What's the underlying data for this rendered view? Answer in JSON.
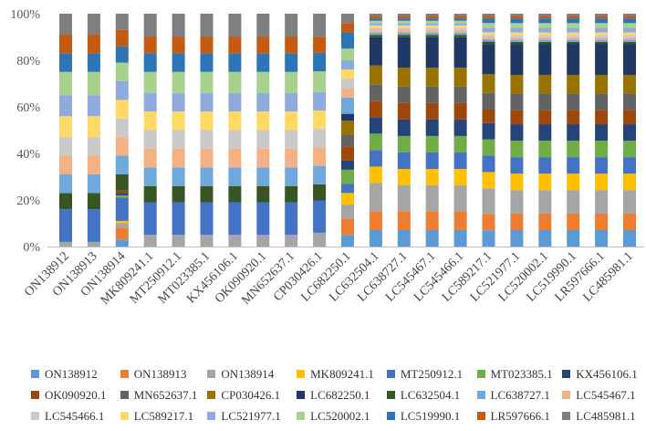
{
  "chart_data": {
    "type": "bar",
    "stacked": true,
    "normalized": true,
    "title": "",
    "xlabel": "",
    "ylabel": "",
    "ylim": [
      0,
      100
    ],
    "y_ticks": [
      "0%",
      "20%",
      "40%",
      "60%",
      "80%",
      "100%"
    ],
    "grid": false,
    "legend_position": "bottom",
    "categories": [
      "ON138912",
      "ON138913",
      "ON138914",
      "MK809241.1",
      "MT250912.1",
      "MT023385.1",
      "KX456106.1",
      "OK090920.1",
      "MN652637.1",
      "CP030426.1",
      "LC682250.1",
      "LC632504.1",
      "LC638727.1",
      "LC545467.1",
      "LC545466.1",
      "LC589217.1",
      "LC521977.1",
      "LC520002.1",
      "LC519990.1",
      "LR597666.1",
      "LC485981.1"
    ],
    "series": [
      {
        "name": "ON138912",
        "color": "#5b9bd5",
        "values": [
          0,
          0,
          3,
          0,
          0,
          0,
          0,
          0,
          0,
          0,
          5,
          7,
          7,
          7,
          7,
          7,
          7,
          7,
          7,
          7,
          7
        ]
      },
      {
        "name": "ON138913",
        "color": "#ed7d31",
        "values": [
          0,
          0,
          5,
          0,
          0,
          0,
          0,
          0,
          0,
          0,
          7,
          8,
          8,
          8,
          8,
          7,
          7,
          7,
          7,
          7,
          7
        ]
      },
      {
        "name": "ON138914",
        "color": "#a5a5a5",
        "values": [
          2,
          2,
          2,
          5,
          5,
          5,
          5,
          5,
          5,
          6,
          6,
          12,
          11,
          11,
          11,
          11,
          10,
          10,
          10,
          10,
          10
        ]
      },
      {
        "name": "MK809241.1",
        "color": "#ffc000",
        "values": [
          0,
          0,
          1,
          0,
          0,
          0,
          0,
          0,
          0,
          0,
          5,
          7,
          7,
          7,
          7,
          7,
          7,
          7,
          7,
          7,
          7
        ]
      },
      {
        "name": "MT250912.1",
        "color": "#4472c4",
        "values": [
          14,
          14,
          10,
          14,
          14,
          14,
          14,
          14,
          14,
          14,
          4,
          7,
          7,
          7,
          7,
          7,
          7,
          7,
          7,
          7,
          7
        ]
      },
      {
        "name": "MT023385.1",
        "color": "#70ad47",
        "values": [
          0,
          0,
          1,
          0,
          0,
          0,
          0,
          0,
          0,
          0,
          6,
          7,
          7,
          7,
          7,
          7,
          7,
          7,
          7,
          7,
          7
        ]
      },
      {
        "name": "KX456106.1",
        "color": "#264478",
        "values": [
          0,
          0,
          1,
          0,
          0,
          0,
          0,
          0,
          0,
          0,
          4,
          7,
          7,
          7,
          7,
          7,
          7,
          7,
          7,
          7,
          7
        ]
      },
      {
        "name": "OK090920.1",
        "color": "#9e480e",
        "values": [
          0,
          0,
          1,
          0,
          0,
          0,
          0,
          0,
          0,
          0,
          6,
          7,
          7,
          7,
          7,
          6,
          6,
          6,
          6,
          6,
          6
        ]
      },
      {
        "name": "MN652637.1",
        "color": "#636363",
        "values": [
          0,
          0,
          0,
          0,
          0,
          0,
          0,
          0,
          0,
          0,
          5,
          7,
          7,
          7,
          7,
          7,
          7,
          7,
          7,
          7,
          7
        ]
      },
      {
        "name": "CP030426.1",
        "color": "#997300",
        "values": [
          0,
          0,
          0,
          0,
          0,
          0,
          0,
          0,
          0,
          0,
          6,
          8,
          8,
          8,
          8,
          8,
          8,
          8,
          8,
          8,
          8
        ]
      },
      {
        "name": "LC682250.1",
        "color": "#203864",
        "values": [
          0,
          0,
          0,
          0,
          0,
          0,
          0,
          0,
          0,
          0,
          3,
          12,
          13,
          13,
          13,
          13,
          13,
          13,
          13,
          13,
          13
        ]
      },
      {
        "name": "LC632504.1",
        "color": "#375623",
        "values": [
          7,
          7,
          7,
          7,
          7,
          7,
          7,
          7,
          7,
          7,
          0,
          1,
          1,
          1,
          1,
          1,
          1,
          1,
          1,
          1,
          1
        ]
      },
      {
        "name": "LC638727.1",
        "color": "#6fa8dc",
        "values": [
          8,
          8,
          8,
          8,
          8,
          8,
          8,
          8,
          8,
          8,
          7,
          1,
          1,
          1,
          1,
          1,
          1,
          1,
          1,
          1,
          1
        ]
      },
      {
        "name": "LC545467.1",
        "color": "#f4b183",
        "values": [
          8,
          8,
          8,
          8,
          8,
          8,
          8,
          8,
          8,
          8,
          4,
          1,
          1,
          1,
          1,
          1,
          1,
          1,
          1,
          1,
          1
        ]
      },
      {
        "name": "LC545466.1",
        "color": "#c9c9c9",
        "values": [
          8,
          8,
          8,
          8,
          8,
          8,
          8,
          8,
          8,
          8,
          4,
          1,
          1,
          1,
          1,
          1,
          1,
          1,
          1,
          1,
          1
        ]
      },
      {
        "name": "LC589217.1",
        "color": "#ffd966",
        "values": [
          9,
          9,
          8,
          8,
          8,
          8,
          8,
          8,
          8,
          8,
          4,
          1,
          1,
          1,
          1,
          1,
          1,
          1,
          1,
          1,
          1
        ]
      },
      {
        "name": "LC521977.1",
        "color": "#8faadc",
        "values": [
          9,
          9,
          8,
          8,
          8,
          8,
          8,
          8,
          8,
          8,
          4,
          1,
          1,
          1,
          1,
          2,
          2,
          2,
          2,
          2,
          2
        ]
      },
      {
        "name": "LC520002.1",
        "color": "#a9d18e",
        "values": [
          10,
          10,
          8,
          9,
          9,
          9,
          9,
          9,
          9,
          9,
          5,
          1,
          1,
          1,
          1,
          2,
          2,
          2,
          2,
          2,
          2
        ]
      },
      {
        "name": "LC519990.1",
        "color": "#2e75b6",
        "values": [
          8,
          8,
          7,
          8,
          8,
          8,
          8,
          8,
          8,
          8,
          7,
          1,
          1,
          1,
          1,
          2,
          2,
          2,
          2,
          2,
          2
        ]
      },
      {
        "name": "LR597666.1",
        "color": "#c55a11",
        "values": [
          8,
          8,
          7,
          7,
          7,
          7,
          7,
          7,
          7,
          7,
          4,
          1,
          1,
          1,
          1,
          1,
          1,
          1,
          1,
          1,
          1
        ]
      },
      {
        "name": "LC485981.1",
        "color": "#7f7f7f",
        "values": [
          9,
          9,
          7,
          10,
          10,
          10,
          10,
          10,
          10,
          10,
          4,
          1,
          1,
          1,
          1,
          1,
          1,
          1,
          1,
          1,
          1
        ]
      }
    ]
  }
}
